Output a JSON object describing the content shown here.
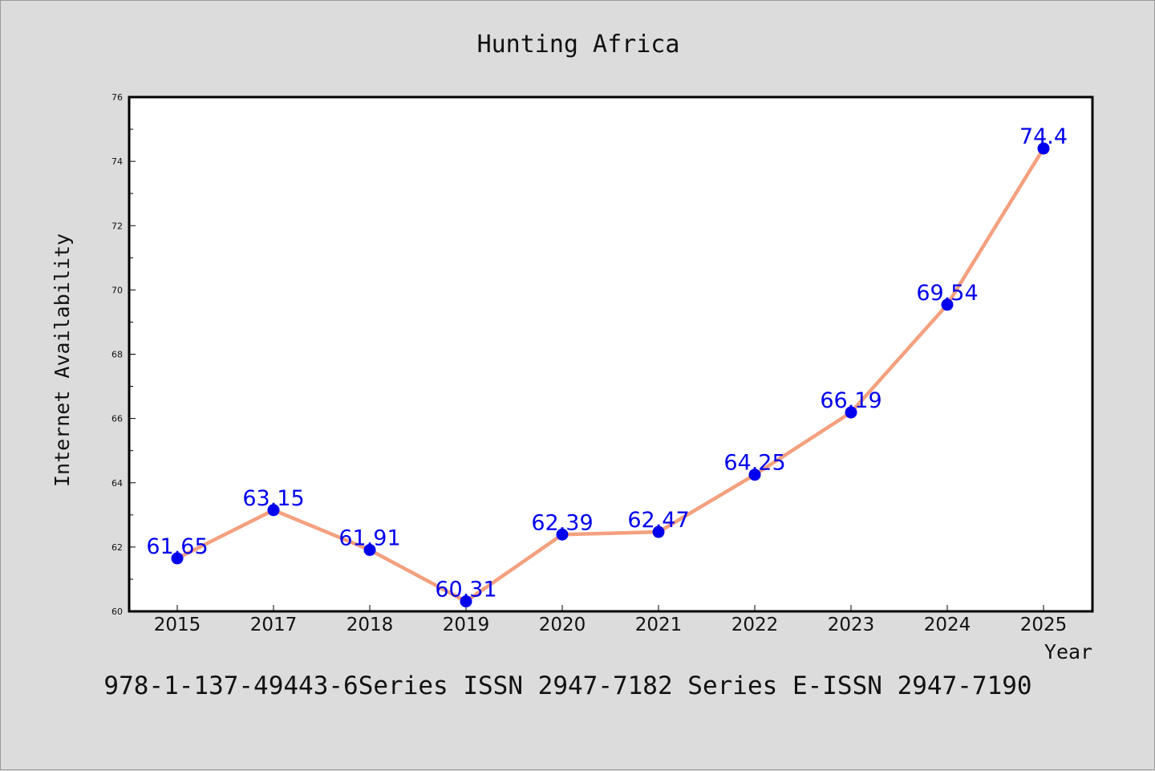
{
  "chart_data": {
    "type": "line",
    "title": "Hunting Africa",
    "xlabel": "Year",
    "ylabel": "Internet Availability",
    "categories": [
      "2015",
      "2017",
      "2018",
      "2019",
      "2020",
      "2021",
      "2022",
      "2023",
      "2024",
      "2025"
    ],
    "series": [
      {
        "values": [
          61.65,
          63.15,
          61.91,
          60.31,
          62.39,
          62.47,
          64.25,
          66.19,
          69.54,
          74.4
        ],
        "labels": [
          "61.65",
          "63.15",
          "61.91",
          "60.31",
          "62.39",
          "62.47",
          "64.25",
          "66.19",
          "69.54",
          "74.4"
        ]
      }
    ],
    "ylim": [
      60,
      76
    ],
    "yticks": [
      "60",
      "62",
      "64",
      "66",
      "68",
      "70",
      "72",
      "74",
      "76"
    ],
    "grid": false,
    "legend": "none",
    "colors": {
      "line": "#f4a07e",
      "marker": "#0000ee",
      "data_label": "#0000ee",
      "background": "#dcdcdc",
      "plot_area": "#ffffff"
    }
  },
  "footer": "978-1-137-49443-6Series ISSN 2947-7182 Series E-ISSN 2947-7190"
}
